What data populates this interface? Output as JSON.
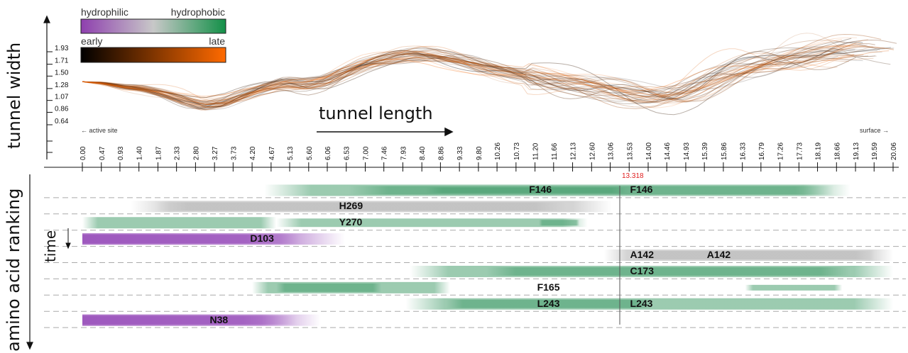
{
  "legend": {
    "hydro_left": "hydrophilic",
    "hydro_right": "hydrophobic",
    "time_left": "early",
    "time_right": "late",
    "colors": {
      "hydrophilic": "#8e3fae",
      "neutral": "#c8c8c8",
      "hydrophobic": "#139048",
      "early": "#000000",
      "late": "#ff6a00"
    }
  },
  "axis_titles": {
    "tunnel_width": "tunnel width",
    "tunnel_length": "tunnel length",
    "amino_ranking": "amino acid ranking",
    "time": "time"
  },
  "side_labels": {
    "active_site": "← active site",
    "surface": "surface →"
  },
  "cursor": {
    "value": "13.318",
    "color": "#e02020"
  },
  "chart_data": {
    "type": "line",
    "xlabel": "tunnel length",
    "ylabel": "tunnel width",
    "x_ticks": [
      "0.00",
      "0.47",
      "0.93",
      "1.40",
      "1.87",
      "2.33",
      "2.80",
      "3.27",
      "3.73",
      "4.20",
      "4.67",
      "5.13",
      "5.60",
      "6.06",
      "6.53",
      "7.00",
      "7.46",
      "7.93",
      "8.40",
      "8.86",
      "9.33",
      "9.80",
      "10.26",
      "10.73",
      "11.20",
      "11.66",
      "12.13",
      "12.60",
      "13.06",
      "13.53",
      "14.00",
      "14.46",
      "14.93",
      "15.39",
      "15.86",
      "16.33",
      "16.79",
      "17.26",
      "17.73",
      "18.19",
      "18.66",
      "19.13",
      "19.59",
      "20.06"
    ],
    "y_ticks": [
      "0.64",
      "0.86",
      "1.07",
      "1.28",
      "1.50",
      "1.71",
      "1.93"
    ],
    "xlim": [
      0,
      20.06
    ],
    "profile_x": [
      0,
      0.5,
      1.0,
      1.5,
      2.0,
      2.5,
      3.0,
      3.5,
      4.0,
      4.5,
      5.0,
      5.5,
      6.0,
      6.5,
      7.0,
      7.5,
      8.0,
      8.5,
      9.0,
      9.5,
      10.0,
      10.5,
      11.0,
      11.5,
      12.0,
      12.5,
      13.0,
      13.5,
      14.0,
      14.5,
      15.0,
      15.5,
      16.0,
      16.5,
      17.0,
      17.5,
      18.0,
      18.5,
      19.0,
      19.5,
      20.06
    ],
    "profile_width": [
      1.4,
      1.37,
      1.3,
      1.26,
      1.18,
      1.08,
      1.0,
      1.05,
      1.18,
      1.3,
      1.38,
      1.36,
      1.42,
      1.58,
      1.72,
      1.8,
      1.86,
      1.86,
      1.8,
      1.72,
      1.62,
      1.56,
      1.5,
      1.46,
      1.43,
      1.38,
      1.3,
      1.2,
      1.14,
      1.12,
      1.2,
      1.36,
      1.52,
      1.66,
      1.76,
      1.84,
      1.9,
      1.94,
      1.97,
      1.95,
      1.93
    ],
    "cursor_x": 13.318,
    "amino_acids": [
      {
        "name": "F146",
        "kind": "hydrophobic",
        "segments": [
          [
            4.5,
            19.0
          ],
          [
            6.6,
            18.6
          ],
          [
            8.5,
            13.5
          ]
        ],
        "labels": [
          {
            "text": "F146",
            "x": 11.0
          },
          {
            "text": "F146",
            "x": 13.5
          }
        ]
      },
      {
        "name": "H269",
        "kind": "neutral",
        "segments": [
          [
            1.2,
            13.1
          ],
          [
            1.8,
            12.0
          ]
        ],
        "labels": [
          {
            "text": "H269",
            "x": 6.3
          }
        ]
      },
      {
        "name": "Y270",
        "kind": "hydrophobic",
        "segments": [
          [
            0.0,
            4.8
          ],
          [
            4.8,
            12.5
          ],
          [
            11.3,
            12.3
          ]
        ],
        "labels": [
          {
            "text": "Y270",
            "x": 6.3
          }
        ]
      },
      {
        "name": "D103",
        "kind": "hydrophilic",
        "segments": [
          [
            0.0,
            6.5
          ],
          [
            0.0,
            5.4
          ]
        ],
        "labels": [
          {
            "text": "D103",
            "x": 4.1
          }
        ]
      },
      {
        "name": "A142",
        "kind": "neutral",
        "segments": [
          [
            12.9,
            20.06
          ],
          [
            13.6,
            19.6
          ]
        ],
        "labels": [
          {
            "text": "A142",
            "x": 13.5
          },
          {
            "text": "A142",
            "x": 15.4
          }
        ]
      },
      {
        "name": "C173",
        "kind": "hydrophobic",
        "segments": [
          [
            8.1,
            20.06
          ],
          [
            10.0,
            19.0
          ]
        ],
        "labels": [
          {
            "text": "C173",
            "x": 13.5
          }
        ]
      },
      {
        "name": "F165",
        "kind": "hydrophobic",
        "segments": [
          [
            4.2,
            9.1
          ],
          [
            4.8,
            7.4
          ],
          [
            16.4,
            18.8
          ]
        ],
        "labels": [
          {
            "text": "F165",
            "x": 11.2
          }
        ]
      },
      {
        "name": "L243",
        "kind": "hydrophobic",
        "segments": [
          [
            8.0,
            20.06
          ],
          [
            9.0,
            14.1
          ]
        ],
        "labels": [
          {
            "text": "L243",
            "x": 11.2
          },
          {
            "text": "L243",
            "x": 13.5
          }
        ]
      },
      {
        "name": "N38",
        "kind": "hydrophilic",
        "segments": [
          [
            0.0,
            5.9
          ],
          [
            0.0,
            5.3
          ]
        ],
        "labels": [
          {
            "text": "N38",
            "x": 3.1
          }
        ]
      }
    ]
  }
}
